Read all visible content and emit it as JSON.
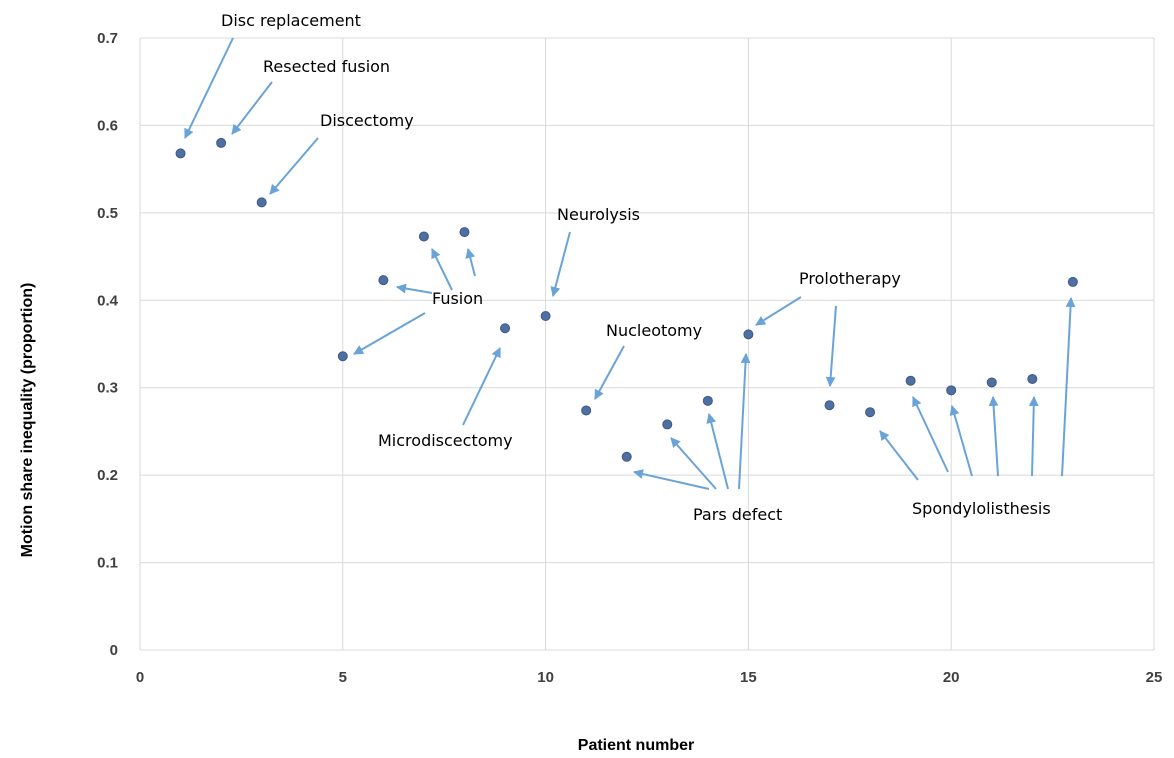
{
  "chart_data": {
    "type": "scatter",
    "title": "",
    "xlabel": "Patient number",
    "ylabel": "Motion share inequality (proportion)",
    "xlim": [
      0,
      25
    ],
    "ylim": [
      0,
      0.7
    ],
    "x_ticks": [
      "0",
      "5",
      "10",
      "15",
      "20",
      "25"
    ],
    "y_ticks": [
      "0",
      "0.1",
      "0.2",
      "0.3",
      "0.4",
      "0.5",
      "0.6",
      "0.7"
    ],
    "grid": true,
    "legend": "none",
    "series": [
      {
        "points": [
          {
            "x": 1,
            "y": 0.568
          },
          {
            "x": 2,
            "y": 0.58
          },
          {
            "x": 3,
            "y": 0.512
          },
          {
            "x": 5,
            "y": 0.336
          },
          {
            "x": 6,
            "y": 0.423
          },
          {
            "x": 7,
            "y": 0.473
          },
          {
            "x": 8,
            "y": 0.478
          },
          {
            "x": 9,
            "y": 0.368
          },
          {
            "x": 10,
            "y": 0.382
          },
          {
            "x": 11,
            "y": 0.274
          },
          {
            "x": 12,
            "y": 0.221
          },
          {
            "x": 13,
            "y": 0.258
          },
          {
            "x": 14,
            "y": 0.285
          },
          {
            "x": 15,
            "y": 0.361
          },
          {
            "x": 17,
            "y": 0.28
          },
          {
            "x": 18,
            "y": 0.272
          },
          {
            "x": 19,
            "y": 0.308
          },
          {
            "x": 20,
            "y": 0.297
          },
          {
            "x": 21,
            "y": 0.306
          },
          {
            "x": 22,
            "y": 0.31
          },
          {
            "x": 23,
            "y": 0.421
          }
        ]
      }
    ],
    "annotations": [
      {
        "text": "Disc replacement",
        "patients": [
          1
        ]
      },
      {
        "text": "Resected fusion",
        "patients": [
          2
        ]
      },
      {
        "text": "Discectomy",
        "patients": [
          3
        ]
      },
      {
        "text": "Fusion",
        "patients": [
          5,
          6,
          7,
          8
        ]
      },
      {
        "text": "Microdiscectomy",
        "patients": [
          9
        ]
      },
      {
        "text": "Neurolysis",
        "patients": [
          10
        ]
      },
      {
        "text": "Nucleotomy",
        "patients": [
          11
        ]
      },
      {
        "text": "Pars defect",
        "patients": [
          12,
          13,
          14,
          15
        ]
      },
      {
        "text": "Prolotherapy",
        "patients": [
          15,
          17
        ]
      },
      {
        "text": "Spondylolisthesis",
        "patients": [
          18,
          19,
          20,
          21,
          22,
          23
        ]
      }
    ]
  }
}
